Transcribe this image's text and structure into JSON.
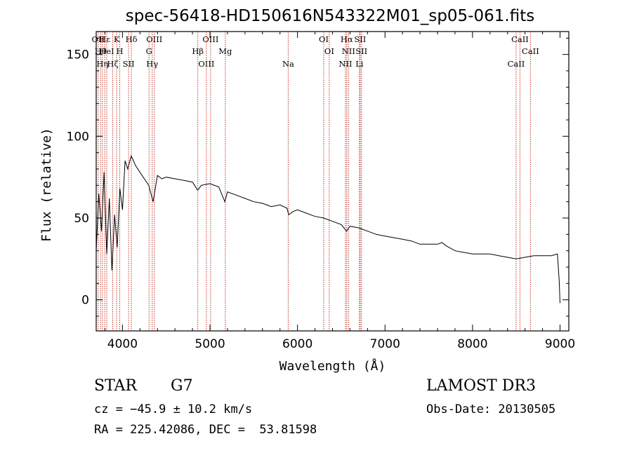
{
  "chart_data": {
    "type": "line",
    "title": "spec-56418-HD150616N543322M01_sp05-061.fits",
    "xlabel": "Wavelength (Å)",
    "ylabel": "Flux (relative)",
    "xlim": [
      3700,
      9100
    ],
    "ylim": [
      -19,
      164
    ],
    "x_ticks": [
      4000,
      5000,
      6000,
      7000,
      8000,
      9000
    ],
    "y_ticks": [
      0,
      50,
      100,
      150
    ],
    "series": [
      {
        "name": "flux",
        "x": [
          3700,
          3730,
          3760,
          3790,
          3820,
          3850,
          3880,
          3910,
          3940,
          3970,
          4000,
          4030,
          4060,
          4100,
          4150,
          4200,
          4250,
          4300,
          4350,
          4400,
          4450,
          4500,
          4600,
          4700,
          4800,
          4860,
          4900,
          5000,
          5100,
          5170,
          5200,
          5300,
          5400,
          5500,
          5600,
          5700,
          5800,
          5880,
          5900,
          5950,
          6000,
          6100,
          6200,
          6300,
          6400,
          6500,
          6560,
          6600,
          6700,
          6800,
          6900,
          7000,
          7100,
          7200,
          7300,
          7400,
          7500,
          7600,
          7650,
          7700,
          7800,
          7900,
          8000,
          8100,
          8200,
          8300,
          8400,
          8500,
          8600,
          8700,
          8800,
          8900,
          8970,
          8990,
          9000
        ],
        "y": [
          30,
          65,
          42,
          78,
          28,
          62,
          18,
          52,
          32,
          68,
          55,
          85,
          80,
          88,
          82,
          78,
          74,
          70,
          60,
          76,
          74,
          75,
          74,
          73,
          72,
          67,
          70,
          71,
          69,
          60,
          66,
          64,
          62,
          60,
          59,
          57,
          58,
          56,
          52,
          54,
          55,
          53,
          51,
          50,
          48,
          46,
          42,
          45,
          44,
          42,
          40,
          39,
          38,
          37,
          36,
          34,
          34,
          34,
          35,
          33,
          30,
          29,
          28,
          28,
          28,
          27,
          26,
          25,
          26,
          27,
          27,
          27,
          28,
          12,
          -2
        ]
      }
    ],
    "line_marks": [
      {
        "x": 3722,
        "label": "OII"
      },
      {
        "x": 3750,
        "label": "Hθ"
      },
      {
        "x": 3771,
        "label": "Hη"
      },
      {
        "x": 3798,
        "label": "Hε"
      },
      {
        "x": 3820,
        "label": "HeI"
      },
      {
        "x": 3889,
        "label": "Hζ"
      },
      {
        "x": 3934,
        "label": "K"
      },
      {
        "x": 3969,
        "label": "H"
      },
      {
        "x": 4070,
        "label": "SII"
      },
      {
        "x": 4102,
        "label": "Hδ"
      },
      {
        "x": 4304,
        "label": "G"
      },
      {
        "x": 4340,
        "label": "Hγ"
      },
      {
        "x": 4364,
        "label": "OIII"
      },
      {
        "x": 4861,
        "label": "Hβ"
      },
      {
        "x": 4959,
        "label": "OIII"
      },
      {
        "x": 5007,
        "label": "OIII"
      },
      {
        "x": 5175,
        "label": "Mg"
      },
      {
        "x": 5894,
        "label": "Na"
      },
      {
        "x": 6300,
        "label": "OI"
      },
      {
        "x": 6363,
        "label": "OI"
      },
      {
        "x": 6548,
        "label": "NII"
      },
      {
        "x": 6563,
        "label": "Hα"
      },
      {
        "x": 6583,
        "label": "NII"
      },
      {
        "x": 6708,
        "label": "Li"
      },
      {
        "x": 6716,
        "label": "SII"
      },
      {
        "x": 6731,
        "label": "SII"
      },
      {
        "x": 8498,
        "label": "CaII"
      },
      {
        "x": 8542,
        "label": "CaII"
      },
      {
        "x": 8662,
        "label": "CaII"
      }
    ]
  },
  "info": {
    "class_label": "STAR",
    "subclass": "G7",
    "survey": "LAMOST DR3",
    "redshift_line": "cz = −45.9 ± 10.2 km/s",
    "obs_date": "Obs-Date: 20130505",
    "coords": "RA = 225.42086, DEC =  53.81598"
  },
  "colors": {
    "spectrum": "#000000",
    "line_marks": "#c0392b",
    "frame": "#000000"
  }
}
